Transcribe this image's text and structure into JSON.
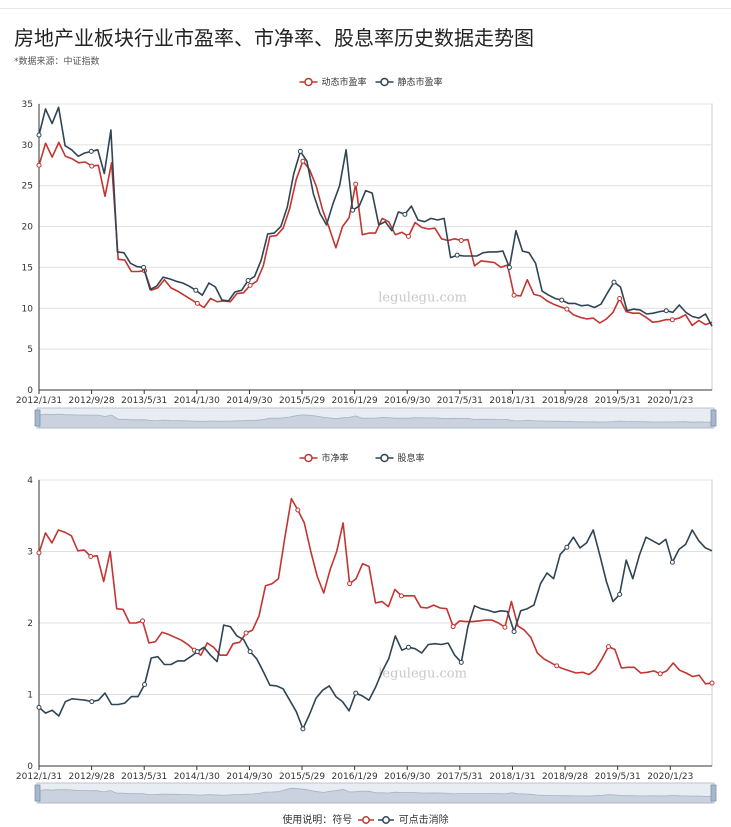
{
  "page": {
    "title": "房地产业板块行业市盈率、市净率、股息率历史数据走势图",
    "subtitle": "*数据来源：中证指数",
    "watermark": "legulegu.com",
    "footnote": "使用说明：符号 -○- 可点击消除",
    "footnote_prefix": "使用说明：符号",
    "footnote_suffix": "可点击消除"
  },
  "colors": {
    "red": "#c23531",
    "dark": "#2f4554",
    "grid": "#e0e0e0",
    "zoom_fill": "#c9d2de"
  },
  "chart_data": [
    {
      "type": "line",
      "x_tick_labels": [
        "2012/1/31",
        "2012/9/28",
        "2013/5/31",
        "2014/1/30",
        "2014/9/30",
        "2015/5/29",
        "2016/1/29",
        "2016/9/30",
        "2017/5/31",
        "2018/1/31",
        "2018/9/28",
        "2019/5/31",
        "2020/1/23"
      ],
      "x_range": [
        "2012/1/31",
        "2020/6"
      ],
      "ylim": [
        0,
        35
      ],
      "yticks": [
        0,
        5,
        10,
        15,
        20,
        25,
        30,
        35
      ],
      "legend_position": "top-center",
      "series": [
        {
          "name": "动态市盈率",
          "color": "#c23531",
          "values": [
            27.5,
            30.2,
            28.5,
            30.3,
            28.6,
            28.3,
            27.8,
            27.9,
            27.4,
            27.5,
            23.7,
            27.8,
            16.0,
            15.9,
            14.5,
            14.5,
            14.6,
            12.2,
            12.5,
            13.5,
            12.5,
            12.1,
            11.6,
            11.1,
            10.6,
            10.1,
            11.2,
            10.8,
            10.9,
            10.8,
            11.8,
            11.9,
            12.8,
            13.3,
            15.2,
            18.8,
            18.9,
            19.8,
            22.2,
            25.8,
            28.0,
            27.0,
            25.0,
            22.0,
            19.8,
            17.4,
            20.0,
            21.1,
            25.2,
            19.0,
            19.2,
            19.2,
            21.0,
            20.6,
            19.0,
            19.3,
            18.8,
            20.5,
            19.9,
            19.7,
            19.8,
            18.5,
            18.3,
            18.5,
            18.3,
            18.4,
            15.2,
            15.8,
            15.7,
            15.6,
            15.0,
            15.3,
            11.6,
            11.5,
            13.5,
            11.7,
            11.5,
            10.9,
            10.5,
            10.2,
            9.9,
            9.2,
            8.9,
            8.7,
            8.8,
            8.2,
            8.7,
            9.5,
            11.2,
            9.6,
            9.4,
            9.4,
            8.9,
            8.3,
            8.4,
            8.6,
            8.6,
            8.8,
            9.2,
            7.9,
            8.5,
            8.0,
            8.3
          ]
        },
        {
          "name": "静态市盈率",
          "color": "#2f4554",
          "values": [
            31.2,
            34.4,
            32.6,
            34.6,
            29.9,
            29.4,
            28.6,
            29.0,
            29.2,
            29.4,
            26.5,
            31.8,
            16.9,
            16.8,
            15.5,
            15.1,
            15.0,
            12.3,
            12.7,
            13.8,
            13.6,
            13.3,
            13.1,
            12.7,
            12.2,
            11.6,
            13.1,
            12.6,
            11.0,
            10.9,
            12.0,
            12.2,
            13.4,
            13.9,
            15.9,
            19.1,
            19.2,
            20.0,
            22.4,
            26.5,
            29.2,
            28.0,
            24.0,
            21.6,
            20.2,
            22.8,
            25.0,
            29.4,
            22.0,
            22.5,
            24.4,
            24.1,
            20.2,
            20.6,
            19.5,
            21.8,
            21.5,
            22.5,
            20.8,
            20.6,
            21.0,
            20.8,
            21.0,
            16.2,
            16.5,
            16.4,
            16.4,
            16.4,
            16.8,
            16.9,
            16.9,
            17.0,
            15.0,
            19.5,
            17.0,
            16.8,
            15.5,
            12.1,
            11.6,
            11.2,
            11.0,
            10.6,
            10.6,
            10.3,
            10.4,
            10.1,
            10.5,
            11.9,
            13.2,
            12.6,
            9.7,
            9.9,
            9.8,
            9.3,
            9.4,
            9.6,
            9.7,
            9.5,
            10.4,
            9.5,
            9.0,
            8.8,
            9.3,
            7.8
          ]
        }
      ]
    },
    {
      "type": "line",
      "x_tick_labels": [
        "2012/1/31",
        "2012/9/28",
        "2013/5/31",
        "2014/1/30",
        "2014/9/30",
        "2015/5/29",
        "2016/1/29",
        "2016/9/30",
        "2017/5/31",
        "2018/1/31",
        "2018/9/28",
        "2019/5/31",
        "2020/1/23"
      ],
      "x_range": [
        "2012/1/31",
        "2020/6"
      ],
      "ylim": [
        0,
        4
      ],
      "yticks": [
        0,
        1,
        2,
        3,
        4
      ],
      "legend_position": "top-center",
      "series": [
        {
          "name": "市净率",
          "color": "#c23531",
          "values": [
            2.98,
            3.26,
            3.12,
            3.3,
            3.27,
            3.22,
            3.01,
            3.02,
            2.93,
            2.94,
            2.58,
            3.0,
            2.2,
            2.19,
            2.0,
            2.0,
            2.03,
            1.72,
            1.74,
            1.87,
            1.84,
            1.8,
            1.76,
            1.7,
            1.62,
            1.55,
            1.72,
            1.66,
            1.55,
            1.55,
            1.71,
            1.73,
            1.86,
            1.9,
            2.1,
            2.52,
            2.55,
            2.62,
            3.2,
            3.74,
            3.58,
            3.4,
            3.0,
            2.65,
            2.42,
            2.75,
            3.0,
            3.4,
            2.55,
            2.62,
            2.83,
            2.79,
            2.28,
            2.3,
            2.23,
            2.47,
            2.38,
            2.38,
            2.38,
            2.22,
            2.21,
            2.25,
            2.21,
            2.2,
            1.95,
            2.03,
            2.02,
            2.02,
            2.03,
            2.04,
            2.04,
            2.0,
            1.94,
            2.3,
            1.96,
            1.9,
            1.8,
            1.58,
            1.5,
            1.45,
            1.4,
            1.36,
            1.33,
            1.3,
            1.31,
            1.28,
            1.35,
            1.5,
            1.67,
            1.63,
            1.37,
            1.38,
            1.38,
            1.3,
            1.31,
            1.33,
            1.29,
            1.33,
            1.44,
            1.34,
            1.3,
            1.25,
            1.27,
            1.15,
            1.16
          ]
        },
        {
          "name": "股息率",
          "color": "#2f4554",
          "values": [
            0.82,
            0.74,
            0.78,
            0.7,
            0.9,
            0.94,
            0.93,
            0.92,
            0.9,
            0.92,
            1.02,
            0.86,
            0.86,
            0.88,
            0.97,
            0.97,
            1.14,
            1.51,
            1.53,
            1.42,
            1.42,
            1.47,
            1.47,
            1.53,
            1.6,
            1.66,
            1.55,
            1.46,
            1.97,
            1.95,
            1.82,
            1.77,
            1.6,
            1.5,
            1.32,
            1.13,
            1.12,
            1.08,
            0.92,
            0.76,
            0.52,
            0.72,
            0.95,
            1.06,
            1.12,
            0.97,
            0.9,
            0.77,
            1.02,
            0.98,
            0.92,
            1.1,
            1.32,
            1.5,
            1.82,
            1.62,
            1.66,
            1.64,
            1.58,
            1.7,
            1.71,
            1.7,
            1.72,
            1.55,
            1.45,
            1.95,
            2.24,
            2.2,
            2.18,
            2.15,
            2.17,
            2.16,
            1.88,
            2.17,
            2.2,
            2.25,
            2.55,
            2.7,
            2.62,
            2.96,
            3.06,
            3.2,
            3.05,
            3.12,
            3.3,
            2.95,
            2.58,
            2.3,
            2.4,
            2.88,
            2.62,
            2.95,
            3.2,
            3.15,
            3.1,
            3.17,
            2.85,
            3.03,
            3.1,
            3.3,
            3.15,
            3.05,
            3.01
          ]
        }
      ]
    }
  ]
}
